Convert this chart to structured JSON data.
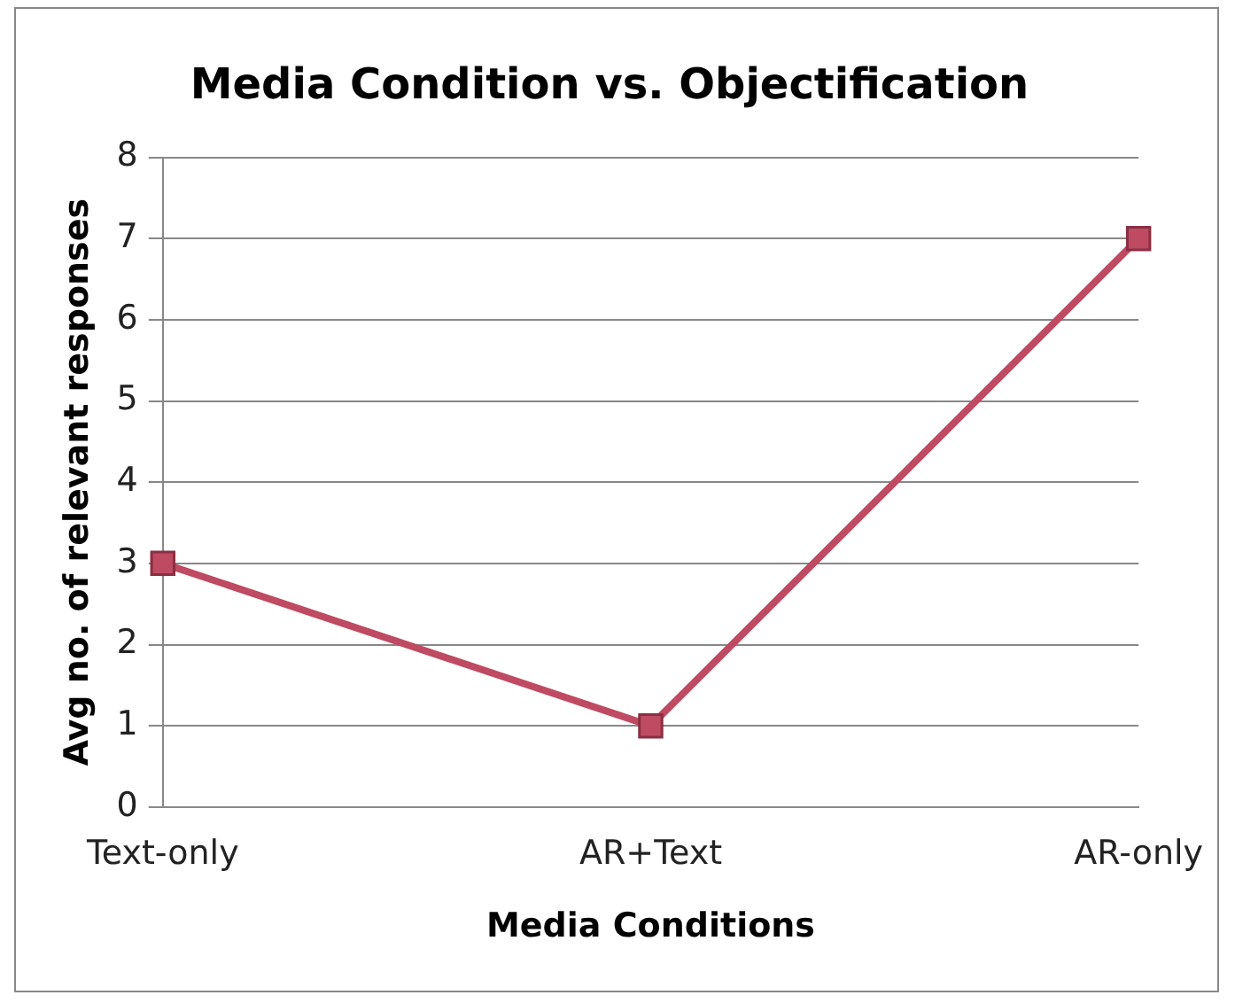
{
  "chart_data": {
    "type": "line",
    "title": "Media Condition vs. Objectification",
    "xlabel": "Media Conditions",
    "ylabel": "Avg no. of relevant responses",
    "categories": [
      "Text-only",
      "AR+Text",
      "AR-only"
    ],
    "series": [
      {
        "color": "#be4b62",
        "values": [
          3,
          1,
          7
        ]
      }
    ],
    "ylim": [
      0,
      8
    ],
    "yticks": [
      0,
      1,
      2,
      3,
      4,
      5,
      6,
      7,
      8
    ],
    "grid": "y",
    "legend": false,
    "marker": "square",
    "line_style": "solid"
  }
}
